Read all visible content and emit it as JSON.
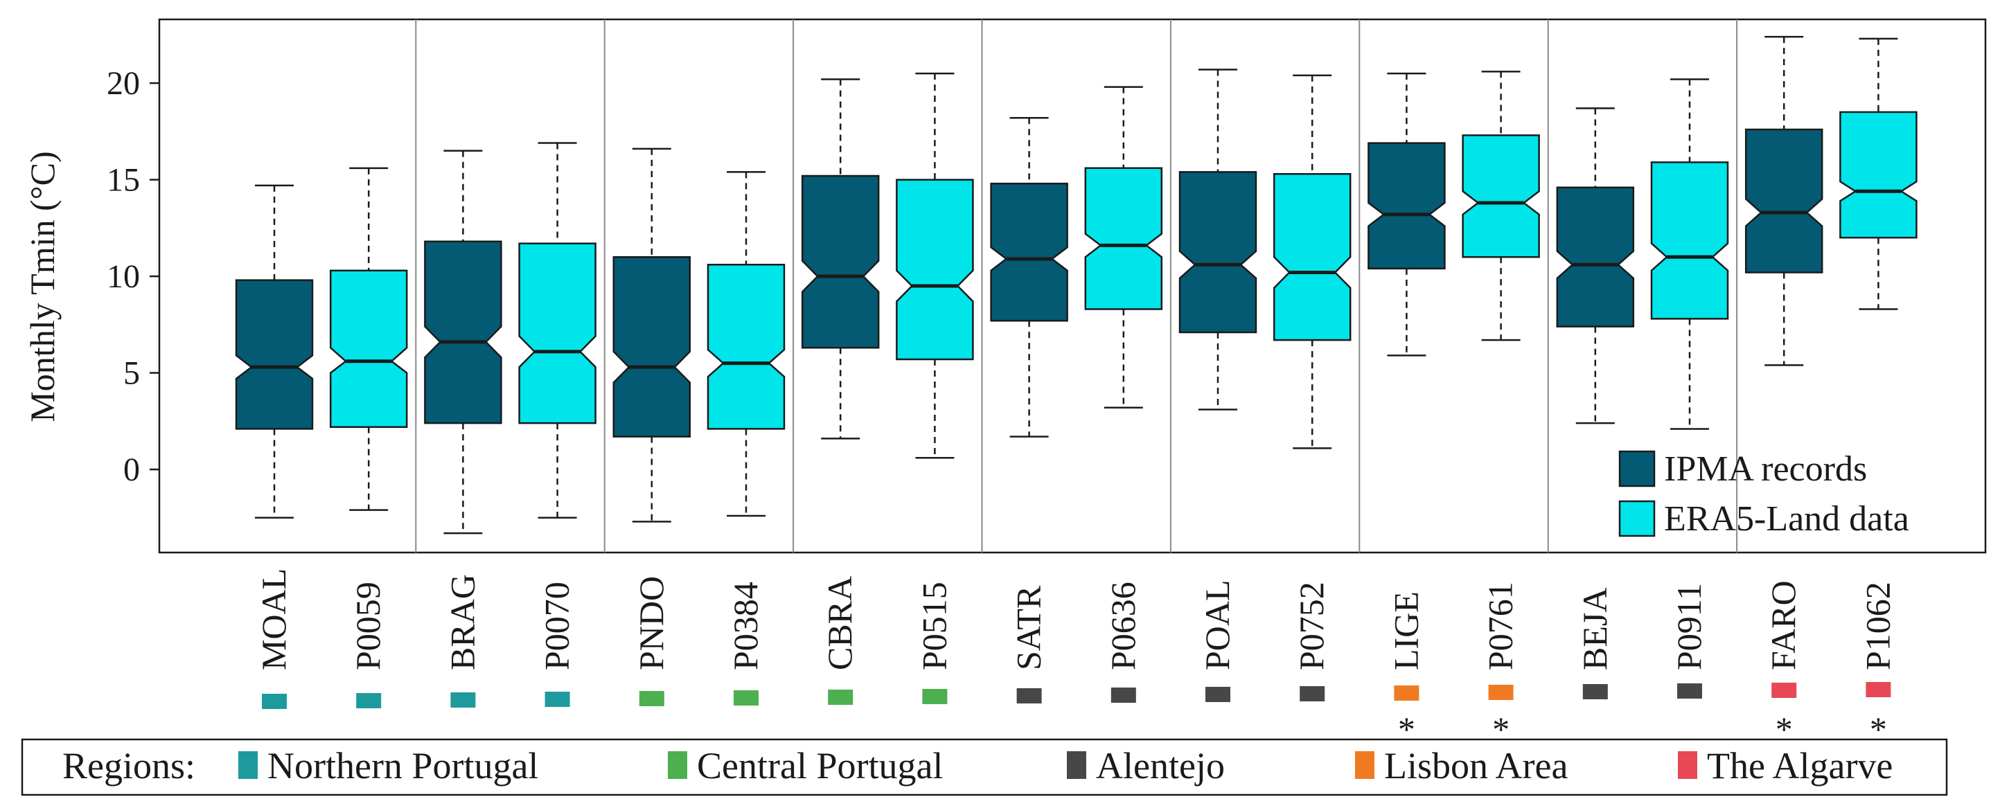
{
  "chart_data": {
    "type": "boxplot",
    "notched": true,
    "ylabel": "Monthly Tmin (°C)",
    "ylim": [
      -4.3,
      23.3
    ],
    "yticks": [
      0,
      5,
      10,
      15,
      20
    ],
    "legend": {
      "position": "bottom-right",
      "entries": [
        {
          "label": "IPMA records",
          "color": "#045a73"
        },
        {
          "label": "ERA5-Land data",
          "color": "#00e5ea"
        }
      ]
    },
    "regions_label": "Regions:",
    "regions": [
      {
        "name": "Northern Portugal",
        "color": "#1e9a9c"
      },
      {
        "name": "Central Portugal",
        "color": "#4caf50"
      },
      {
        "name": "Alentejo",
        "color": "#474747"
      },
      {
        "name": "Lisbon Area",
        "color": "#f07a22"
      },
      {
        "name": "The Algarve",
        "color": "#e84855"
      }
    ],
    "stations": [
      {
        "label": "MOAL",
        "source": "IPMA records",
        "region": 0,
        "star": false,
        "whisker_low": -2.5,
        "q1": 2.1,
        "median": 5.3,
        "q3": 9.8,
        "whisker_high": 14.7,
        "notch_low": 4.7,
        "notch_high": 5.9
      },
      {
        "label": "P0059",
        "source": "ERA5-Land data",
        "region": 0,
        "star": false,
        "whisker_low": -2.1,
        "q1": 2.2,
        "median": 5.6,
        "q3": 10.3,
        "whisker_high": 15.6,
        "notch_low": 5.0,
        "notch_high": 6.3
      },
      {
        "label": "BRAG",
        "source": "IPMA records",
        "region": 0,
        "star": false,
        "whisker_low": -3.3,
        "q1": 2.4,
        "median": 6.6,
        "q3": 11.8,
        "whisker_high": 16.5,
        "notch_low": 5.8,
        "notch_high": 7.4
      },
      {
        "label": "P0070",
        "source": "ERA5-Land data",
        "region": 0,
        "star": false,
        "whisker_low": -2.5,
        "q1": 2.4,
        "median": 6.1,
        "q3": 11.7,
        "whisker_high": 16.9,
        "notch_low": 5.3,
        "notch_high": 6.9
      },
      {
        "label": "PNDO",
        "source": "IPMA records",
        "region": 1,
        "star": false,
        "whisker_low": -2.7,
        "q1": 1.7,
        "median": 5.3,
        "q3": 11.0,
        "whisker_high": 16.6,
        "notch_low": 4.5,
        "notch_high": 6.1
      },
      {
        "label": "P0384",
        "source": "ERA5-Land data",
        "region": 1,
        "star": false,
        "whisker_low": -2.4,
        "q1": 2.1,
        "median": 5.5,
        "q3": 10.6,
        "whisker_high": 15.4,
        "notch_low": 4.8,
        "notch_high": 6.2
      },
      {
        "label": "CBRA",
        "source": "IPMA records",
        "region": 1,
        "star": false,
        "whisker_low": 1.6,
        "q1": 6.3,
        "median": 10.0,
        "q3": 15.2,
        "whisker_high": 20.2,
        "notch_low": 9.2,
        "notch_high": 10.8
      },
      {
        "label": "P0515",
        "source": "ERA5-Land data",
        "region": 1,
        "star": false,
        "whisker_low": 0.6,
        "q1": 5.7,
        "median": 9.5,
        "q3": 15.0,
        "whisker_high": 20.5,
        "notch_low": 8.7,
        "notch_high": 10.3
      },
      {
        "label": "SATR",
        "source": "IPMA records",
        "region": 2,
        "star": false,
        "whisker_low": 1.7,
        "q1": 7.7,
        "median": 10.9,
        "q3": 14.8,
        "whisker_high": 18.2,
        "notch_low": 10.3,
        "notch_high": 11.5
      },
      {
        "label": "P0636",
        "source": "ERA5-Land data",
        "region": 2,
        "star": false,
        "whisker_low": 3.2,
        "q1": 8.3,
        "median": 11.6,
        "q3": 15.6,
        "whisker_high": 19.8,
        "notch_low": 11.0,
        "notch_high": 12.2
      },
      {
        "label": "POAL",
        "source": "IPMA records",
        "region": 2,
        "star": false,
        "whisker_low": 3.1,
        "q1": 7.1,
        "median": 10.6,
        "q3": 15.4,
        "whisker_high": 20.7,
        "notch_low": 9.9,
        "notch_high": 11.3
      },
      {
        "label": "P0752",
        "source": "ERA5-Land data",
        "region": 2,
        "star": false,
        "whisker_low": 1.1,
        "q1": 6.7,
        "median": 10.2,
        "q3": 15.3,
        "whisker_high": 20.4,
        "notch_low": 9.4,
        "notch_high": 11.0
      },
      {
        "label": "LIGE",
        "source": "IPMA records",
        "region": 3,
        "star": true,
        "whisker_low": 5.9,
        "q1": 10.4,
        "median": 13.2,
        "q3": 16.9,
        "whisker_high": 20.5,
        "notch_low": 12.6,
        "notch_high": 13.8
      },
      {
        "label": "P0761",
        "source": "ERA5-Land data",
        "region": 3,
        "star": true,
        "whisker_low": 6.7,
        "q1": 11.0,
        "median": 13.8,
        "q3": 17.3,
        "whisker_high": 20.6,
        "notch_low": 13.2,
        "notch_high": 14.4
      },
      {
        "label": "BEJA",
        "source": "IPMA records",
        "region": 2,
        "star": false,
        "whisker_low": 2.4,
        "q1": 7.4,
        "median": 10.6,
        "q3": 14.6,
        "whisker_high": 18.7,
        "notch_low": 9.9,
        "notch_high": 11.3
      },
      {
        "label": "P0911",
        "source": "ERA5-Land data",
        "region": 2,
        "star": false,
        "whisker_low": 2.1,
        "q1": 7.8,
        "median": 11.0,
        "q3": 15.9,
        "whisker_high": 20.2,
        "notch_low": 10.3,
        "notch_high": 11.7
      },
      {
        "label": "FARO",
        "source": "IPMA records",
        "region": 4,
        "star": true,
        "whisker_low": 5.4,
        "q1": 10.2,
        "median": 13.3,
        "q3": 17.6,
        "whisker_high": 22.4,
        "notch_low": 12.6,
        "notch_high": 14.0
      },
      {
        "label": "P1062",
        "source": "ERA5-Land data",
        "region": 4,
        "star": true,
        "whisker_low": 8.3,
        "q1": 12.0,
        "median": 14.4,
        "q3": 18.5,
        "whisker_high": 22.3,
        "notch_low": 13.9,
        "notch_high": 14.9
      }
    ]
  }
}
